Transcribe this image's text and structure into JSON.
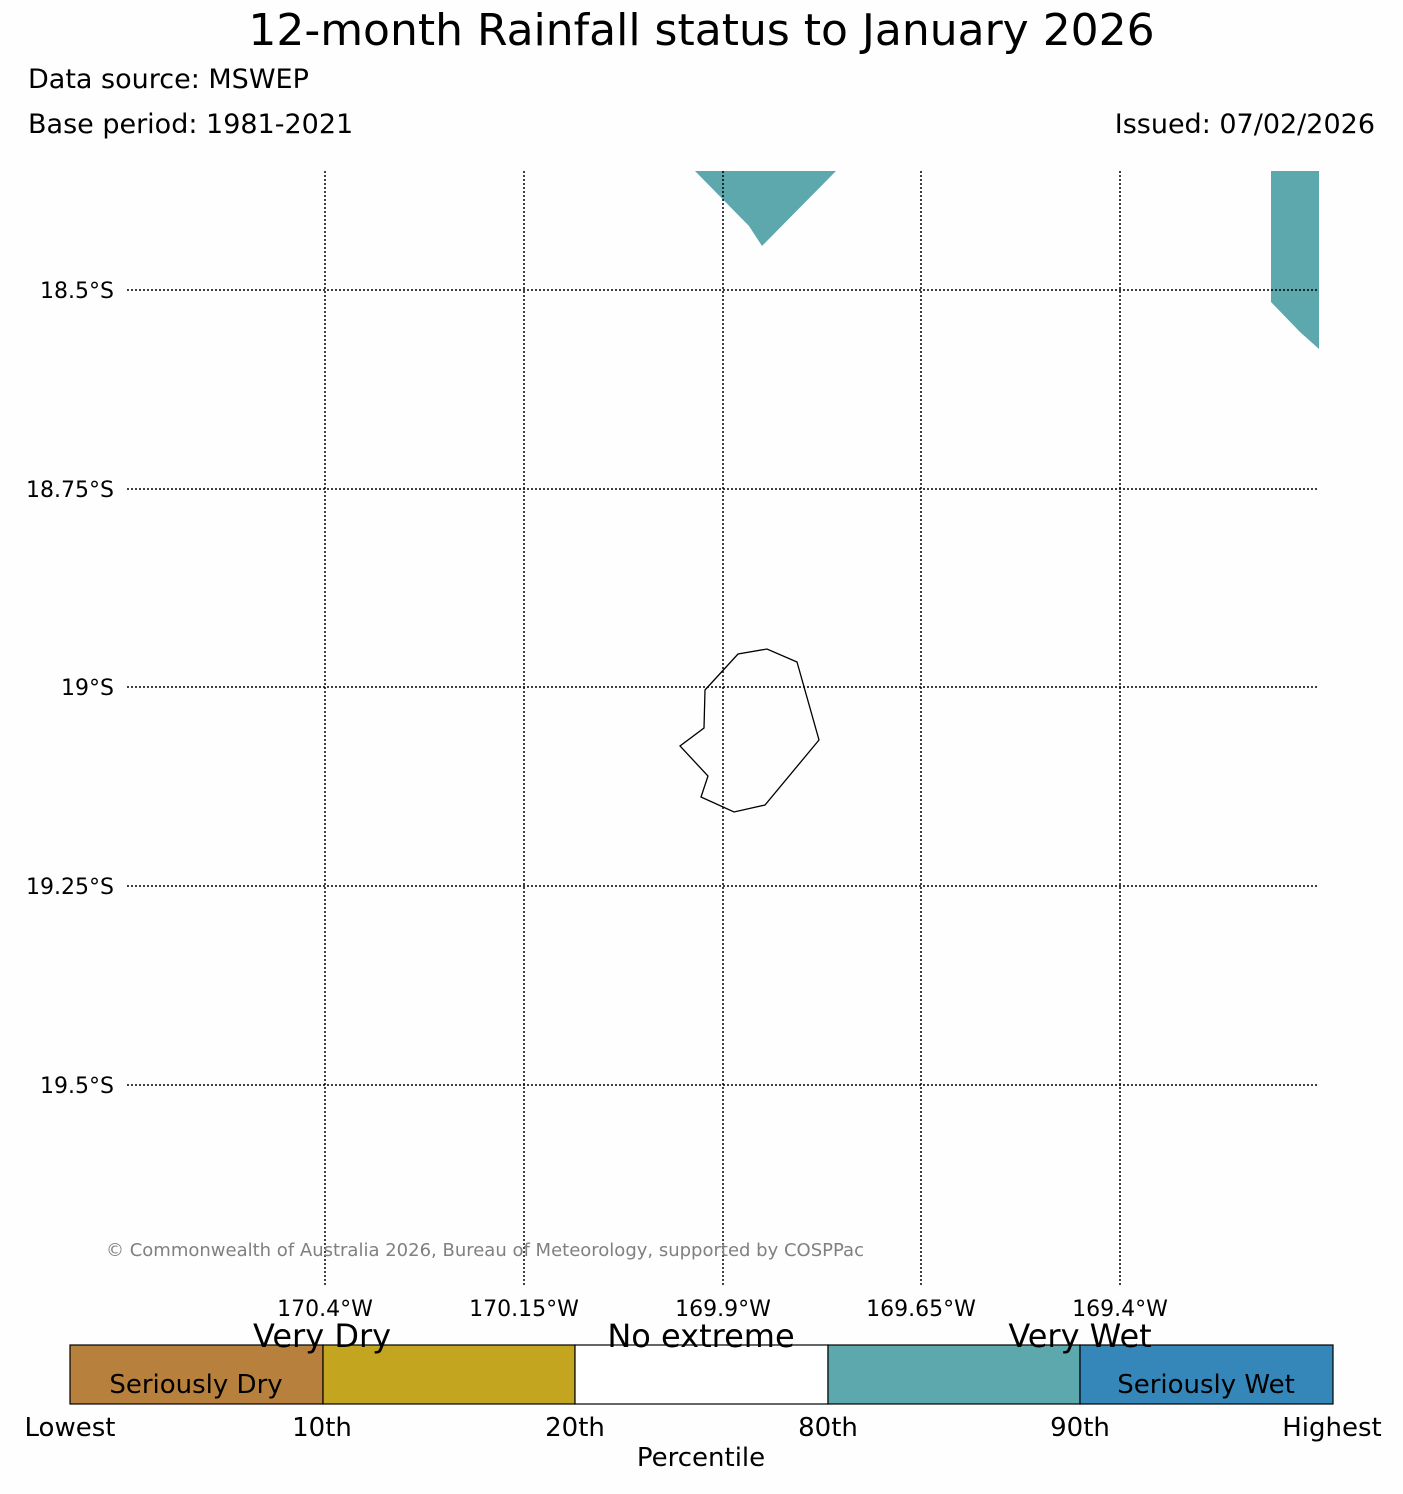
{
  "header": {
    "title": "12-month Rainfall status to January 2026",
    "data_source": "Data source: MSWEP",
    "base_period": "Base period: 1981-2021",
    "issued": "Issued: 07/02/2026"
  },
  "map": {
    "latitude_labels": [
      "18.5°S",
      "18.75°S",
      "19°S",
      "19.25°S",
      "19.5°S"
    ],
    "longitude_labels": [
      "170.4°W",
      "170.15°W",
      "169.9°W",
      "169.65°W",
      "169.4°W"
    ],
    "copyright": "© Commonwealth of Australia 2026, Bureau of Meteorology, supported by COSPPac",
    "colors": {
      "very_wet": "#5ca8ad",
      "coastline": "#000000",
      "gridline": "#000000"
    }
  },
  "legend": {
    "categories": [
      {
        "label": "Seriously Dry",
        "color": "#b8803d"
      },
      {
        "label": "",
        "color": "#c4a51f"
      },
      {
        "label": "",
        "color": "#ffffff"
      },
      {
        "label": "",
        "color": "#5ca8ad"
      },
      {
        "label": "Seriously Wet",
        "color": "#3587b9"
      }
    ],
    "group_labels": [
      "Very Dry",
      "No extreme",
      "Very Wet"
    ],
    "tick_labels": [
      "Lowest",
      "10th",
      "20th",
      "80th",
      "90th",
      "Highest"
    ],
    "axis_label": "Percentile"
  }
}
